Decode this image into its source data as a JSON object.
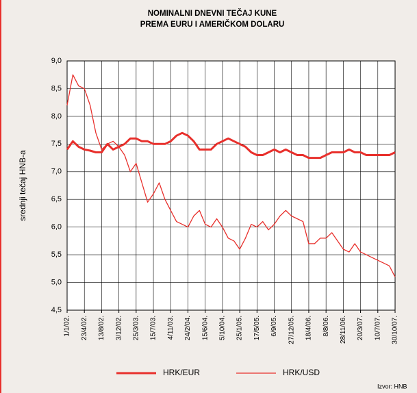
{
  "chart_data": {
    "type": "line",
    "title": [
      "NOMINALNI DNEVNI TEČAJ KUNE",
      "PREMA EURU I AMERIČKOM DOLARU"
    ],
    "ylabel": "srednji tečaj HNB-a",
    "source": "Izvor: HNB",
    "categories": [
      "1/1/02.",
      null,
      null,
      "23/4/02.",
      null,
      null,
      "13/8/02.",
      null,
      null,
      "3/12/02.",
      null,
      null,
      "25/3/03.",
      null,
      null,
      "15/7/03.",
      null,
      null,
      "4/11/03.",
      null,
      null,
      "24/2/04.",
      null,
      null,
      "15/6/04.",
      null,
      null,
      "5/10/04.",
      null,
      null,
      "25/1/05.",
      null,
      null,
      "17/5/05.",
      null,
      null,
      "6/9/05.",
      null,
      null,
      "27/12/05.",
      null,
      null,
      "18/4/06.",
      null,
      null,
      "8/8/06.",
      null,
      null,
      "28/11/06.",
      null,
      null,
      "20/3/07.",
      null,
      null,
      "10/7/07.",
      null,
      null,
      "30/10/07."
    ],
    "series": [
      {
        "name": "HRK/EUR",
        "color": "#e8302c",
        "width": 3,
        "values": [
          7.4,
          7.55,
          7.45,
          7.4,
          7.38,
          7.35,
          7.35,
          7.5,
          7.4,
          7.45,
          7.5,
          7.6,
          7.6,
          7.55,
          7.55,
          7.5,
          7.5,
          7.5,
          7.55,
          7.65,
          7.7,
          7.65,
          7.55,
          7.4,
          7.4,
          7.4,
          7.5,
          7.55,
          7.6,
          7.55,
          7.5,
          7.45,
          7.35,
          7.3,
          7.3,
          7.35,
          7.4,
          7.35,
          7.4,
          7.35,
          7.3,
          7.3,
          7.25,
          7.25,
          7.25,
          7.3,
          7.35,
          7.35,
          7.35,
          7.4,
          7.35,
          7.35,
          7.3,
          7.3,
          7.3,
          7.3,
          7.3,
          7.35
        ]
      },
      {
        "name": "HRK/USD",
        "color": "#e8302c",
        "width": 1.3,
        "values": [
          8.2,
          8.75,
          8.55,
          8.5,
          8.2,
          7.7,
          7.4,
          7.5,
          7.55,
          7.45,
          7.3,
          7.0,
          7.15,
          6.8,
          6.45,
          6.6,
          6.8,
          6.5,
          6.3,
          6.1,
          6.05,
          6.0,
          6.2,
          6.3,
          6.05,
          6.0,
          6.15,
          6.0,
          5.8,
          5.75,
          5.6,
          5.8,
          6.05,
          6.0,
          6.1,
          5.95,
          6.05,
          6.2,
          6.3,
          6.2,
          6.15,
          6.1,
          5.7,
          5.7,
          5.8,
          5.8,
          5.9,
          5.75,
          5.6,
          5.55,
          5.7,
          5.55,
          5.5,
          5.45,
          5.4,
          5.35,
          5.3,
          5.1
        ]
      }
    ],
    "ylim": [
      4.5,
      9.0
    ],
    "yticks": [
      {
        "value": 4.5,
        "label": "4,5"
      },
      {
        "value": 5.0,
        "label": "5,0"
      },
      {
        "value": 5.5,
        "label": "5,5"
      },
      {
        "value": 6.0,
        "label": "6,0"
      },
      {
        "value": 6.5,
        "label": "6,5"
      },
      {
        "value": 7.0,
        "label": "7,0"
      },
      {
        "value": 7.5,
        "label": "7,5"
      },
      {
        "value": 8.0,
        "label": "8,0"
      },
      {
        "value": 8.5,
        "label": "8,5"
      },
      {
        "value": 9.0,
        "label": "9,0"
      }
    ],
    "grid": true
  }
}
